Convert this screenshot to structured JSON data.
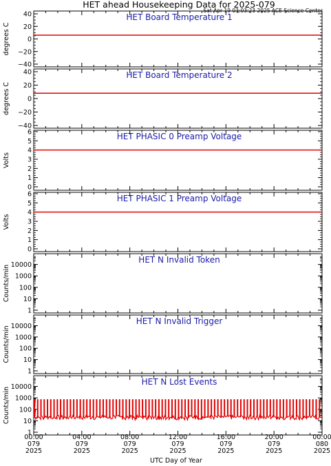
{
  "title": "HET ahead Housekeeping Data for 2025-079",
  "timestamp": "Sat Apr 19 03:03:23 2025 ACE Science Center",
  "xlabel": "UTC Day of Year",
  "x_ticks": [
    {
      "hhmm": "00:00",
      "doy": "079",
      "year": "2025"
    },
    {
      "hhmm": "04:00",
      "doy": "079",
      "year": "2025"
    },
    {
      "hhmm": "08:00",
      "doy": "079",
      "year": "2025"
    },
    {
      "hhmm": "12:00",
      "doy": "079",
      "year": "2025"
    },
    {
      "hhmm": "16:00",
      "doy": "079",
      "year": "2025"
    },
    {
      "hhmm": "20:00",
      "doy": "079",
      "year": "2025"
    },
    {
      "hhmm": "00:00",
      "doy": "080",
      "year": "2025"
    }
  ],
  "colors": {
    "series": "#e00000",
    "panel_title": "#1a1aa8",
    "axes": "#000000"
  },
  "chart_data": [
    {
      "type": "line",
      "title": "HET Board Temperature 1",
      "ylabel": "degrees C",
      "yscale": "linear",
      "ylim": [
        -40,
        40
      ],
      "yticks": [
        40,
        20,
        0,
        -20,
        -40
      ],
      "ytick_labels": [
        "40",
        "20",
        "0",
        "−20",
        "−40"
      ],
      "xlim_hours": [
        0,
        24
      ],
      "series": [
        {
          "x_hours": [
            0,
            24
          ],
          "values": [
            6,
            6
          ]
        }
      ]
    },
    {
      "type": "line",
      "title": "HET Board Temperature 2",
      "ylabel": "degrees C",
      "yscale": "linear",
      "ylim": [
        -40,
        40
      ],
      "yticks": [
        40,
        20,
        0,
        -20,
        -40
      ],
      "ytick_labels": [
        "40",
        "20",
        "0",
        "−20",
        "−40"
      ],
      "xlim_hours": [
        0,
        24
      ],
      "series": [
        {
          "x_hours": [
            0,
            24
          ],
          "values": [
            8,
            8
          ]
        }
      ]
    },
    {
      "type": "line",
      "title": "HET PHASIC 0 Preamp Voltage",
      "ylabel": "Volts",
      "yscale": "linear",
      "ylim": [
        0,
        6
      ],
      "yticks": [
        6,
        5,
        4,
        3,
        2,
        1,
        0
      ],
      "ytick_labels": [
        "6",
        "5",
        "4",
        "3",
        "2",
        "1",
        "0"
      ],
      "xlim_hours": [
        0,
        24
      ],
      "series": [
        {
          "x_hours": [
            0,
            24
          ],
          "values": [
            4,
            4
          ]
        }
      ]
    },
    {
      "type": "line",
      "title": "HET PHASIC 1 Preamp Voltage",
      "ylabel": "Volts",
      "yscale": "linear",
      "ylim": [
        0,
        6
      ],
      "yticks": [
        6,
        5,
        4,
        3,
        2,
        1,
        0
      ],
      "ytick_labels": [
        "6",
        "5",
        "4",
        "3",
        "2",
        "1",
        "0"
      ],
      "xlim_hours": [
        0,
        24
      ],
      "series": [
        {
          "x_hours": [
            0,
            24
          ],
          "values": [
            4,
            4
          ]
        }
      ]
    },
    {
      "type": "line",
      "title": "HET N Invalid Token",
      "ylabel": "Counts/min",
      "yscale": "log",
      "ylim": [
        1,
        50000
      ],
      "yticks": [
        10000,
        1000,
        100,
        10,
        1
      ],
      "ytick_labels": [
        "10000",
        "1000",
        "100",
        "10",
        "1"
      ],
      "xlim_hours": [
        0,
        24
      ],
      "series": []
    },
    {
      "type": "line",
      "title": "HET N Invalid Trigger",
      "ylabel": "Counts/min",
      "yscale": "log",
      "ylim": [
        1,
        50000
      ],
      "yticks": [
        10000,
        1000,
        100,
        10,
        1
      ],
      "ytick_labels": [
        "10000",
        "1000",
        "100",
        "10",
        "1"
      ],
      "xlim_hours": [
        0,
        24
      ],
      "series": []
    },
    {
      "type": "line",
      "title": "HET N Lost Events",
      "ylabel": "Counts/min",
      "yscale": "log",
      "ylim": [
        1,
        50000
      ],
      "yticks": [
        10000,
        1000,
        100,
        10,
        1
      ],
      "ytick_labels": [
        "10000",
        "1000",
        "100",
        "10",
        "1"
      ],
      "xlim_hours": [
        0,
        24
      ],
      "series": [
        {
          "pattern": "periodic_spikes",
          "spike_count": 88,
          "peak": 700,
          "base_low": 12,
          "base_high": 30
        }
      ]
    }
  ]
}
